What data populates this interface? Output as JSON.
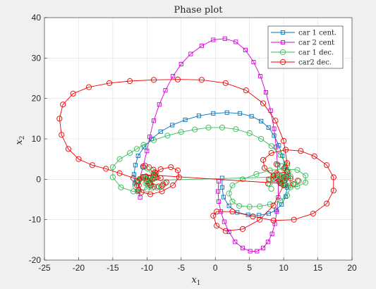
{
  "chart_data": {
    "type": "line",
    "title": "Phase plot",
    "xlabel": "x",
    "xlabel_sub": "1",
    "ylabel": "x",
    "ylabel_sub": "2",
    "xlim": [
      -25,
      20
    ],
    "ylim": [
      -20,
      40
    ],
    "xticks": [
      "-25",
      "-20",
      "-15",
      "-10",
      "-5",
      "0",
      "5",
      "10",
      "15",
      "20"
    ],
    "yticks": [
      "-20",
      "-10",
      "0",
      "10",
      "20",
      "30",
      "40"
    ],
    "grid": true,
    "legend_position": "top-right",
    "series": [
      {
        "name": "car 1 cent.",
        "color": "#0072bd",
        "marker": "square",
        "x": [
          -11.8,
          -11.9,
          -11.7,
          -11.3,
          -10.4,
          -9.3,
          -8.0,
          -6.3,
          -4.4,
          -2.4,
          -0.3,
          1.7,
          3.6,
          5.3,
          6.7,
          7.8,
          8.6,
          9.3,
          9.8,
          10.2,
          10.4,
          10.5,
          10.3,
          9.7,
          8.9,
          7.8,
          6.4,
          4.8,
          3.2,
          2.0,
          1.2,
          1.0,
          1.0
        ],
        "y": [
          -1.0,
          1.2,
          3.5,
          5.8,
          8.0,
          10.0,
          11.8,
          13.4,
          14.7,
          15.7,
          16.3,
          16.5,
          16.3,
          15.6,
          14.4,
          12.8,
          10.8,
          8.4,
          5.8,
          3.2,
          0.6,
          -2.0,
          -4.3,
          -6.2,
          -7.6,
          -8.5,
          -8.9,
          -8.8,
          -8.2,
          -6.6,
          -4.4,
          -2.0,
          0.3
        ]
      },
      {
        "name": "car 2 cent",
        "color": "#d500d5",
        "marker": "square",
        "x": [
          -11.0,
          -11.3,
          -11.1,
          -10.6,
          -10.0,
          -9.6,
          -9.0,
          -8.2,
          -7.3,
          -6.2,
          -5.0,
          -3.6,
          -2.0,
          -0.3,
          1.4,
          3.0,
          4.4,
          5.6,
          6.6,
          7.4,
          8.1,
          8.6,
          8.9,
          9.1,
          9.2,
          9.2,
          9.0,
          8.7,
          8.3,
          7.7,
          7.0,
          6.1,
          5.1,
          4.0,
          2.9,
          2.0,
          1.3,
          0.8,
          0.5,
          0.4,
          0.5
        ],
        "y": [
          -4.5,
          -3.0,
          0.0,
          3.0,
          7.0,
          10.5,
          14.5,
          18.5,
          22.0,
          25.5,
          28.5,
          31.0,
          33.0,
          34.5,
          34.8,
          34.0,
          32.0,
          29.0,
          25.5,
          21.5,
          17.0,
          12.5,
          8.0,
          3.5,
          -0.5,
          -4.5,
          -8.0,
          -11.0,
          -13.5,
          -15.5,
          -17.0,
          -17.8,
          -17.8,
          -17.0,
          -15.5,
          -13.0,
          -10.5,
          -8.0,
          -5.5,
          -3.0,
          -0.5
        ]
      },
      {
        "name": "car 1 dec.",
        "color": "#33bb55",
        "marker": "circle",
        "x": [
          -10.0,
          -12.0,
          -13.8,
          -15.0,
          -15.0,
          -14.0,
          -12.5,
          -11.5,
          -10.5,
          -9.0,
          -7.0,
          -5.0,
          -3.0,
          -1.0,
          1.0,
          3.0,
          5.0,
          6.7,
          8.2,
          9.5,
          10.5,
          11.0,
          11.0,
          10.5,
          9.5,
          8.0,
          6.5,
          5.0,
          3.5,
          2.5,
          2.0,
          2.5,
          4.0,
          6.0,
          8.0,
          10.0,
          12.0,
          13.2,
          13.2,
          12.0,
          10.0,
          9.5,
          9.8,
          10.0,
          9.7,
          10.2,
          10.0,
          -9.6,
          -10.2,
          -9.4,
          -10.0,
          -9.6
        ],
        "y": [
          -2.5,
          -3.0,
          -2.0,
          0.5,
          3.0,
          5.0,
          6.5,
          7.5,
          8.5,
          9.7,
          10.8,
          11.7,
          12.3,
          12.8,
          12.8,
          12.4,
          11.4,
          10.0,
          8.2,
          6.0,
          3.5,
          0.7,
          -2.0,
          -4.0,
          -5.3,
          -6.2,
          -6.7,
          -6.8,
          -6.6,
          -5.5,
          -3.5,
          -1.5,
          0.0,
          1.3,
          2.2,
          2.6,
          2.3,
          0.9,
          -0.8,
          -1.8,
          -1.5,
          -0.8,
          0.2,
          1.0,
          0.4,
          -0.3,
          0.6,
          -0.3,
          -1.0,
          0.5,
          -0.6,
          0.3
        ]
      },
      {
        "name": "car2 dec.",
        "color": "#ee0000",
        "marker": "circle",
        "x": [
          -10.0,
          -12.0,
          -14.0,
          -16.0,
          -18.0,
          -20.0,
          -21.5,
          -22.5,
          -22.8,
          -22.3,
          -20.8,
          -18.5,
          -15.5,
          -12.5,
          -9.0,
          -5.5,
          -2.0,
          1.5,
          4.5,
          7.0,
          8.8,
          10.0,
          10.5,
          10.0,
          8.5,
          6.5,
          4.0,
          1.5,
          0.2,
          -0.3,
          0.2,
          2.5,
          5.5,
          8.5,
          11.5,
          14.3,
          16.3,
          17.3,
          17.3,
          16.3,
          14.5,
          12.5,
          10.3,
          8.2,
          7.0,
          7.2,
          8.5,
          10.0,
          11.0,
          10.5,
          9.0,
          8.5,
          9.5,
          -9.0,
          -8.0,
          -6.5,
          -5.5,
          -5.3,
          -6.2,
          -7.8,
          -9.5,
          -10.8,
          -11.2,
          -10.5,
          -9.0,
          -8.0,
          -9.5
        ],
        "y": [
          -0.5,
          0.3,
          1.5,
          2.6,
          3.5,
          5.0,
          7.5,
          11.0,
          15.0,
          18.5,
          21.2,
          22.8,
          23.8,
          24.3,
          24.6,
          24.7,
          24.6,
          23.8,
          22.0,
          18.8,
          14.5,
          9.5,
          4.0,
          -1.5,
          -6.5,
          -10.0,
          -12.3,
          -12.8,
          -11.5,
          -9.0,
          -8.0,
          -8.0,
          -9.2,
          -10.2,
          -10.0,
          -8.5,
          -6.0,
          -2.8,
          0.5,
          3.5,
          5.7,
          7.0,
          7.3,
          6.5,
          4.8,
          2.8,
          0.9,
          -0.5,
          0.2,
          1.8,
          1.5,
          0.0,
          -1.0,
          1.0,
          2.5,
          3.0,
          2.2,
          0.5,
          -1.5,
          -3.0,
          -3.7,
          -3.2,
          -1.5,
          0.5,
          1.3,
          0.3,
          -0.8
        ]
      }
    ]
  }
}
